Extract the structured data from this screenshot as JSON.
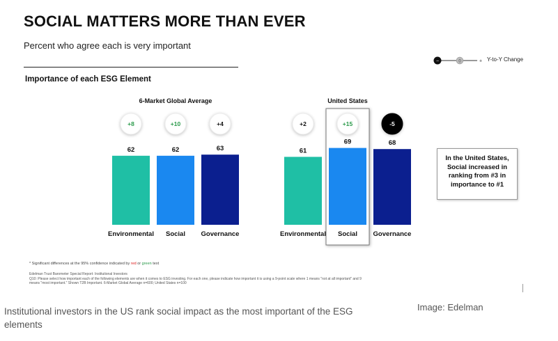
{
  "slide": {
    "title": "SOCIAL MATTERS MORE THAN EVER",
    "subtitle": "Percent who agree each is very important",
    "section_label": "Importance of each ESG Element",
    "legend_label": "Y-to-Y Change",
    "callout": "In the United States, Social increased in ranking from #3 in importance to #1",
    "footnote_prefix": "* Significant differences at the 95% confidence indicated by ",
    "footnote_red": "red",
    "footnote_or": " or ",
    "footnote_green": "green",
    "footnote_suffix": " text",
    "source_line1": "Edelman Trust Barometer Special Report: Institutional Investors",
    "source_line2": "Q10: Please select how important each of the following elements are when it comes to ESG investing. For each one, please indicate how important it is using a 9-point scale where 1 means \"not at all important\" and 9 means \"most important.\" Shown T2B Important. 6-Market Global Average n=600; United States n=100"
  },
  "caption": "Institutional investors in the US rank social impact as the most important of the ESG elements",
  "credit": "Image: Edelman",
  "colors": {
    "environmental": "#1fbfa5",
    "social": "#1a88f0",
    "governance": "#0b1f8f",
    "positive_badge": "#2a9a4a",
    "negative_badge": "#000000"
  },
  "chart_data": [
    {
      "type": "bar",
      "title": "6-Market Global Average",
      "categories": [
        "Environmental",
        "Social",
        "Governance"
      ],
      "values": [
        62,
        62,
        63
      ],
      "changes": [
        "+8",
        "+10",
        "+4"
      ],
      "change_significant": [
        "positive",
        "positive",
        "none"
      ],
      "ylim": [
        0,
        80
      ],
      "grid": false
    },
    {
      "type": "bar",
      "title": "United States",
      "categories": [
        "Environmental",
        "Social",
        "Governance"
      ],
      "values": [
        61,
        69,
        68
      ],
      "changes": [
        "+2",
        "+15",
        "-5"
      ],
      "change_significant": [
        "none",
        "positive",
        "negative"
      ],
      "highlighted_category": "Social",
      "ylim": [
        0,
        80
      ],
      "grid": false
    }
  ]
}
